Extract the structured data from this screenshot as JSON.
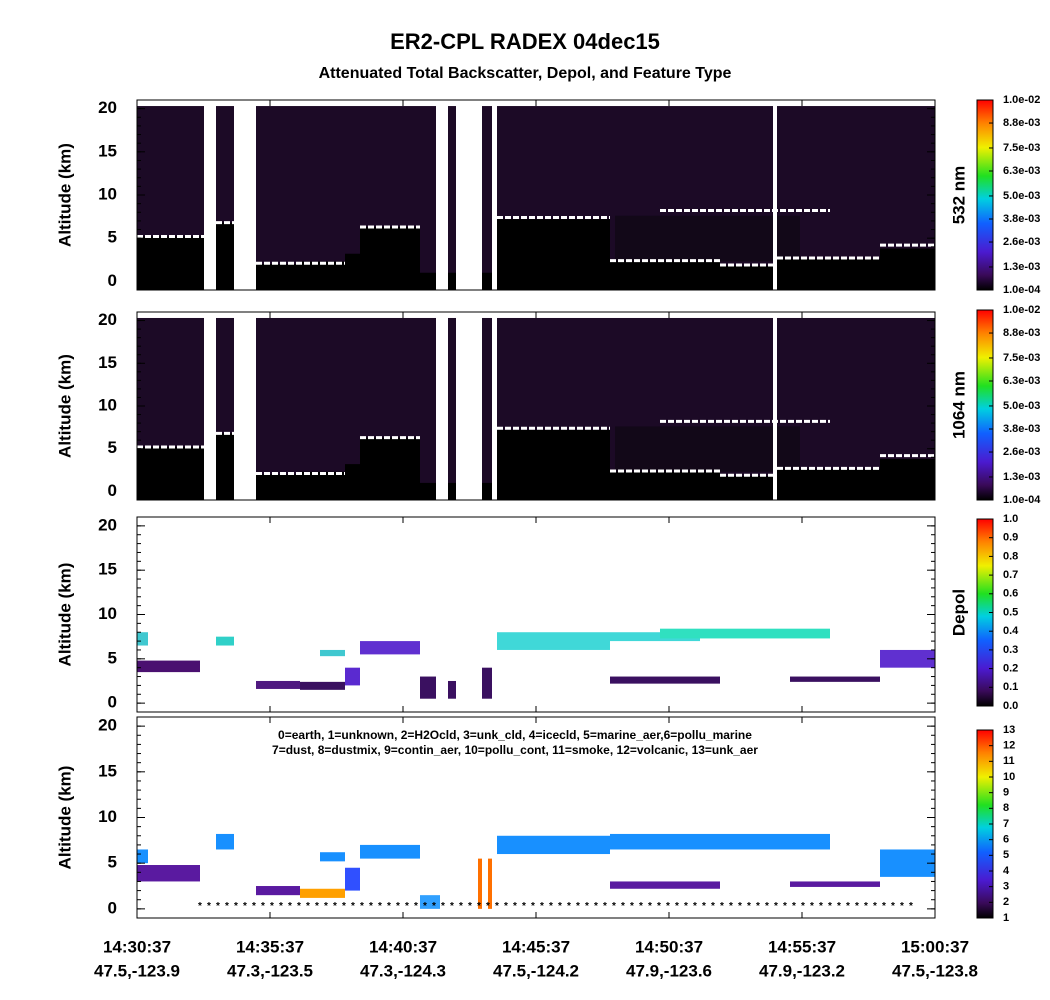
{
  "title": "ER2-CPL RADEX 04dec15",
  "subtitle": "Attenuated Total Backscatter, Depol, and Feature Type",
  "x_labels": [
    {
      "time": "14:30:37",
      "location": "47.5,-123.9"
    },
    {
      "time": "14:35:37",
      "location": "47.3,-123.5"
    },
    {
      "time": "14:40:37",
      "location": "47.3,-124.3"
    },
    {
      "time": "14:45:37",
      "location": "47.5,-124.2"
    },
    {
      "time": "14:50:37",
      "location": "47.9,-123.6"
    },
    {
      "time": "14:55:37",
      "location": "47.9,-123.2"
    },
    {
      "time": "15:00:37",
      "location": "47.5,-123.8"
    }
  ],
  "chart_data": [
    {
      "type": "curtain",
      "ylabel": "Altitude (km)",
      "ylim": [
        -1,
        21
      ],
      "yticks": [
        0,
        5,
        10,
        15,
        20
      ],
      "colorbar_label": "532 nm",
      "clim": [
        0.0001,
        0.01
      ],
      "colorbar_ticks": [
        {
          "value": 0.0001,
          "label": "1.0e-04"
        },
        {
          "value": 0.0013,
          "label": "1.3e-03"
        },
        {
          "value": 0.0026,
          "label": "2.6e-03"
        },
        {
          "value": 0.0038,
          "label": "3.8e-03"
        },
        {
          "value": 0.005,
          "label": "5.0e-03"
        },
        {
          "value": 0.0063,
          "label": "6.3e-03"
        },
        {
          "value": 0.0075,
          "label": "7.5e-03"
        },
        {
          "value": 0.0088,
          "label": "8.8e-03"
        },
        {
          "value": 0.01,
          "label": "1.0e-02"
        }
      ]
    },
    {
      "type": "curtain",
      "ylabel": "Altitude (km)",
      "ylim": [
        -1,
        21
      ],
      "yticks": [
        0,
        5,
        10,
        15,
        20
      ],
      "colorbar_label": "1064 nm",
      "clim": [
        0.0001,
        0.01
      ],
      "colorbar_ticks": [
        {
          "value": 0.0001,
          "label": "1.0e-04"
        },
        {
          "value": 0.0013,
          "label": "1.3e-03"
        },
        {
          "value": 0.0026,
          "label": "2.6e-03"
        },
        {
          "value": 0.0038,
          "label": "3.8e-03"
        },
        {
          "value": 0.005,
          "label": "5.0e-03"
        },
        {
          "value": 0.0063,
          "label": "6.3e-03"
        },
        {
          "value": 0.0075,
          "label": "7.5e-03"
        },
        {
          "value": 0.0088,
          "label": "8.8e-03"
        },
        {
          "value": 0.01,
          "label": "1.0e-02"
        }
      ]
    },
    {
      "type": "depol",
      "ylabel": "Altitude (km)",
      "ylim": [
        -1,
        21
      ],
      "yticks": [
        0,
        5,
        10,
        15,
        20
      ],
      "colorbar_label": "Depol",
      "clim": [
        0,
        1
      ],
      "colorbar_ticks": [
        {
          "value": 0,
          "label": "0.0"
        },
        0.1,
        0.2,
        0.3,
        0.4,
        0.5,
        0.6,
        0.7,
        0.8,
        0.9,
        {
          "value": 1,
          "label": "1.0"
        }
      ]
    },
    {
      "type": "feature",
      "ylabel": "Altitude (km)",
      "ylim": [
        -1,
        21
      ],
      "yticks": [
        0,
        5,
        10,
        15,
        20
      ],
      "clim": [
        1,
        13
      ],
      "colorbar_ticks": [
        1,
        2,
        3,
        4,
        5,
        6,
        7,
        8,
        9,
        10,
        11,
        12,
        13
      ],
      "annotations": [
        "0=earth, 1=unknown, 2=H2Ocld, 3=unk_cld, 4=icecld, 5=marine_aer,6=pollu_marine",
        "7=dust, 8=dustmix, 9=contin_aer, 10=pollu_cont, 11=smoke, 12=volcanic, 13=unk_aer"
      ]
    }
  ]
}
